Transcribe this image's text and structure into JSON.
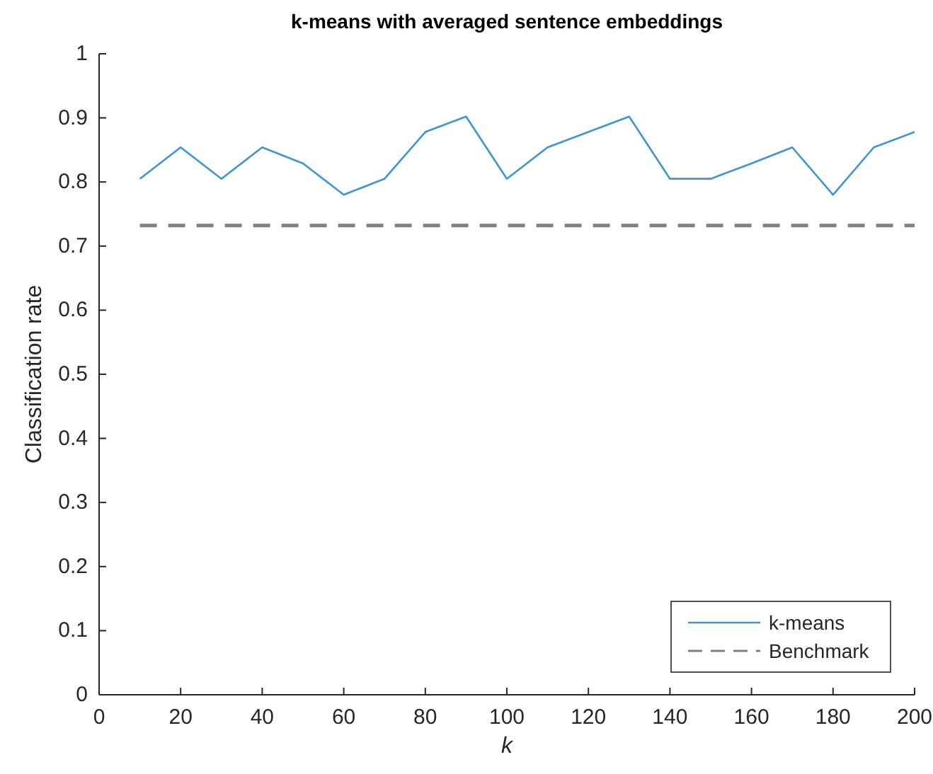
{
  "chart_data": {
    "type": "line",
    "title": "k-means with averaged sentence embeddings",
    "xlabel": "k",
    "ylabel": "Classification rate",
    "x": [
      10,
      20,
      30,
      40,
      50,
      60,
      70,
      80,
      90,
      100,
      110,
      120,
      130,
      140,
      150,
      160,
      170,
      180,
      190,
      200
    ],
    "series": [
      {
        "name": "k-means",
        "color": "#3c96d4",
        "values": [
          0.805,
          0.854,
          0.805,
          0.854,
          0.829,
          0.78,
          0.805,
          0.878,
          0.902,
          0.805,
          0.854,
          0.878,
          0.902,
          0.805,
          0.805,
          0.829,
          0.854,
          0.78,
          0.854,
          0.878
        ]
      },
      {
        "name": "Benchmark",
        "color": "#808080",
        "line_style": "dashed",
        "x": [
          10,
          200
        ],
        "values": [
          0.732,
          0.732
        ]
      }
    ],
    "xlim": [
      0,
      200
    ],
    "xticks": [
      0,
      20,
      40,
      60,
      80,
      100,
      120,
      140,
      160,
      180,
      200
    ],
    "ylim": [
      0,
      1
    ],
    "yticks": [
      0,
      0.1,
      0.2,
      0.3,
      0.4,
      0.5,
      0.6,
      0.7,
      0.8,
      0.9,
      1
    ],
    "legend": "bottom right"
  }
}
